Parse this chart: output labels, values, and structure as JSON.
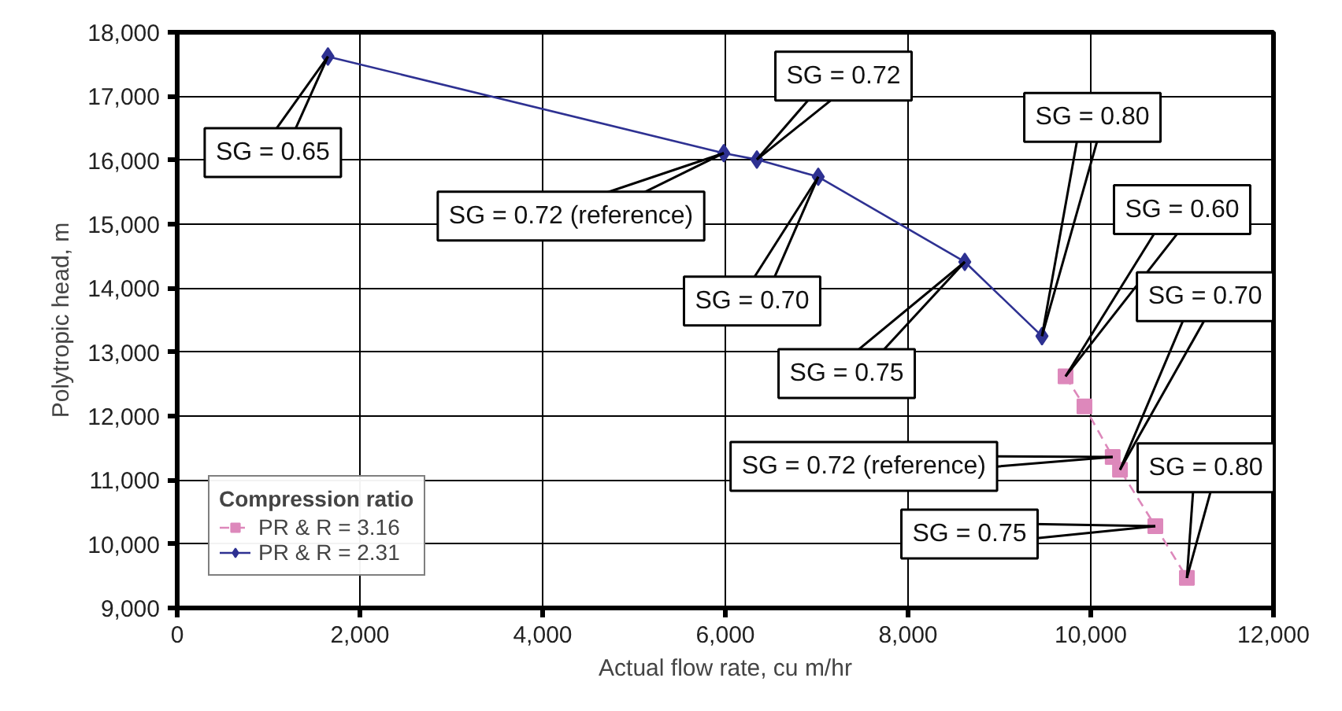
{
  "chart_data": {
    "type": "line",
    "xlabel": "Actual flow rate, cu m/hr",
    "ylabel": "Polytropic head, m",
    "legend_title": "Compression ratio",
    "series": [
      {
        "name": "PR & R = 3.16",
        "color": "#dd88bb",
        "marker": "square",
        "line_style": "dashed",
        "x": [
          9724,
          9931,
          10240,
          10320,
          10707,
          11052
        ],
        "values": [
          12620,
          12150,
          11360,
          11160,
          10280,
          9470
        ]
      },
      {
        "name": "PR & R = 2.31",
        "color": "#2e3192",
        "marker": "diamond",
        "line_style": "solid",
        "x": [
          1650,
          5983,
          6345,
          7017,
          8621,
          9466
        ],
        "values": [
          17620,
          16110,
          16010,
          15740,
          14410,
          13250
        ]
      }
    ],
    "annotations": [
      {
        "text": "SG = 0.65",
        "x": 1650,
        "y": 17620
      },
      {
        "text": "SG = 0.72 (reference)",
        "x": 5983,
        "y": 16110
      },
      {
        "text": "SG = 0.72",
        "x": 6345,
        "y": 16010
      },
      {
        "text": "SG = 0.70",
        "x": 7017,
        "y": 15740
      },
      {
        "text": "SG = 0.75",
        "x": 8621,
        "y": 14410
      },
      {
        "text": "SG = 0.80",
        "x": 9466,
        "y": 13250
      },
      {
        "text": "SG = 0.60",
        "x": 9724,
        "y": 12620
      },
      {
        "text": "SG = 0.70",
        "x": 10320,
        "y": 11160
      },
      {
        "text": "SG = 0.72 (reference)",
        "x": 10240,
        "y": 11360
      },
      {
        "text": "SG = 0.75",
        "x": 10707,
        "y": 10280
      },
      {
        "text": "SG = 0.80",
        "x": 11052,
        "y": 9470
      }
    ],
    "xlim": [
      0,
      12000
    ],
    "ylim": [
      9000,
      18000
    ],
    "xticks": [
      0,
      {
        "value": 2000,
        "label": "2,000"
      },
      {
        "value": 4000,
        "label": "4,000"
      },
      {
        "value": 6000,
        "label": "6,000"
      },
      {
        "value": 8000,
        "label": "8,000"
      },
      {
        "value": 10000,
        "label": "10,000"
      },
      {
        "value": 12000,
        "label": "12,000"
      }
    ],
    "yticks": [
      {
        "value": 9000,
        "label": "9,000"
      },
      {
        "value": 10000,
        "label": "10,000"
      },
      {
        "value": 11000,
        "label": "11,000"
      },
      {
        "value": 12000,
        "label": "12,000"
      },
      {
        "value": 13000,
        "label": "13,000"
      },
      {
        "value": 14000,
        "label": "14,000"
      },
      {
        "value": 15000,
        "label": "15,000"
      },
      {
        "value": 16000,
        "label": "16,000"
      },
      {
        "value": 17000,
        "label": "17,000"
      },
      {
        "value": 18000,
        "label": "18,000"
      }
    ],
    "grid": true,
    "legend": "bottom left"
  }
}
